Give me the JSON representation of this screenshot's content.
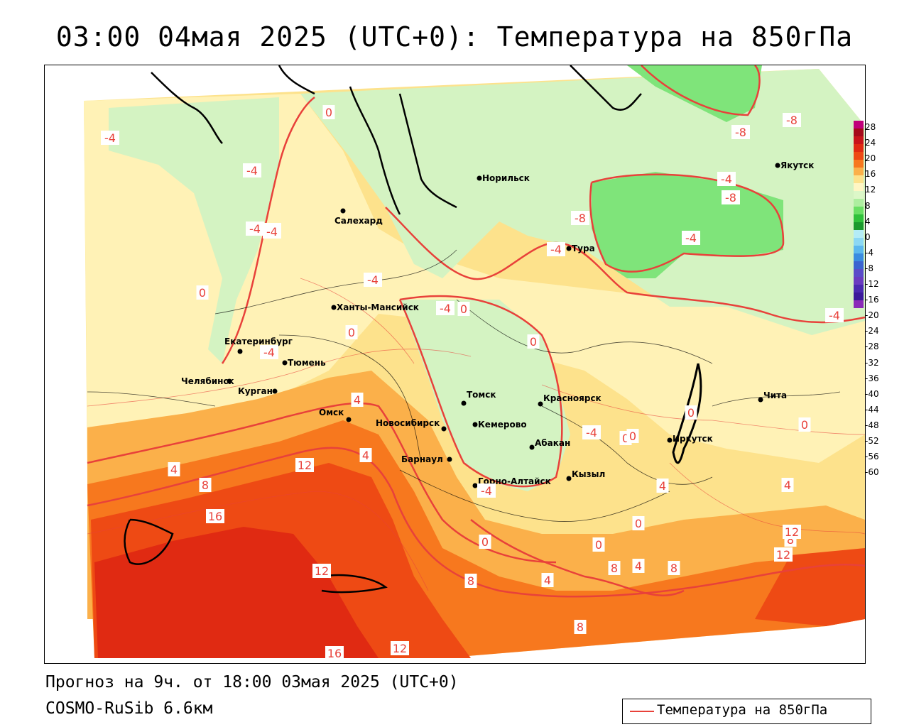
{
  "title": "03:00 04мая 2025 (UTC+0): Температура на 850гПа",
  "footer": {
    "forecast": "Прогноз на 9ч. от 18:00 03мая 2025 (UTC+0)",
    "model": "COSMO-RuSib 6.6км"
  },
  "legend": {
    "label": "Температура на 850гПа",
    "line_color": "#e8413a"
  },
  "colorbar": {
    "ticks": [
      "28",
      "24",
      "20",
      "16",
      "12",
      "8",
      "4",
      "0",
      "-4",
      "-8",
      "-12",
      "-16",
      "-20",
      "-24",
      "-28",
      "-32",
      "-36",
      "-40",
      "-44",
      "-48",
      "-52",
      "-56",
      "-60"
    ],
    "colors": [
      "#c0007a",
      "#a50a1a",
      "#c8141a",
      "#e02a12",
      "#ee4a14",
      "#f7781e",
      "#fbb04a",
      "#fde28c",
      "#fff6c4",
      "#dcf7c8",
      "#aeeea0",
      "#6adf64",
      "#2fc13a",
      "#1a9a2c",
      "#b4ecf6",
      "#8cd8f4",
      "#5cb8ee",
      "#3a8ce0",
      "#3a64d0",
      "#5a4cc8",
      "#6a3cc0",
      "#4a2ab0",
      "#3a1a9a",
      "#8a2ab8"
    ]
  },
  "cities": [
    {
      "name": "Норильск"
    },
    {
      "name": "Якутск"
    },
    {
      "name": "Салехард"
    },
    {
      "name": "Тура"
    },
    {
      "name": "Ханты-Мансийск"
    },
    {
      "name": "Екатеринбург"
    },
    {
      "name": "Тюмень"
    },
    {
      "name": "Челябинск"
    },
    {
      "name": "Курган"
    },
    {
      "name": "Омск"
    },
    {
      "name": "Новосибирск"
    },
    {
      "name": "Томск"
    },
    {
      "name": "Красноярск"
    },
    {
      "name": "Кемерово"
    },
    {
      "name": "Абакан"
    },
    {
      "name": "Барнаул"
    },
    {
      "name": "Горно-Алтайск"
    },
    {
      "name": "Кызыл"
    },
    {
      "name": "Иркутск"
    },
    {
      "name": "Чита"
    }
  ],
  "isolabels": [
    "0",
    "-4",
    "-4",
    "-4",
    "-4",
    "-8",
    "-8",
    "-4",
    "-8",
    "-4",
    "-8",
    "-4",
    "-4",
    "-4",
    "-4",
    "0",
    "0",
    "-4",
    "0",
    "4",
    "4",
    "8",
    "12",
    "16",
    "12",
    "8",
    "8",
    "0",
    "0",
    "0",
    "4",
    "8",
    "12",
    "16",
    "12",
    "-4",
    "0",
    "0",
    "4",
    "4",
    "0",
    "8",
    "4",
    "0",
    "4",
    "8",
    "12",
    "-4",
    "0",
    "-4"
  ]
}
